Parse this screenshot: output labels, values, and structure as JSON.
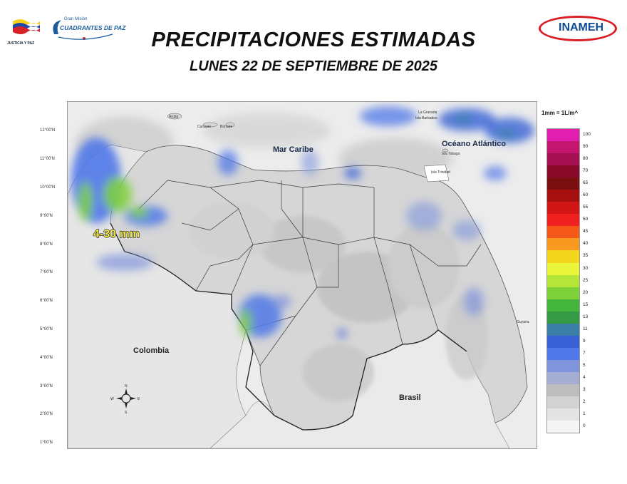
{
  "header": {
    "title": "PRECIPITACIONES ESTIMADAS",
    "subtitle": "LUNES 22 DE SEPTIEMBRE DE 2025",
    "logo_left_caption": "JUSTICIA Y PAZ",
    "mision_small": "Gran Misión",
    "mision_big": "CUADRANTES DE PAZ",
    "logo_right_text": "INAMEH"
  },
  "map": {
    "labels": {
      "mar_caribe": "Mar Caribe",
      "oceano": "Océano Atlántico",
      "colombia": "Colombia",
      "brasil": "Brasil",
      "aruba": "Aruba",
      "curacao": "Curaçao",
      "bonaire": "Bonaire",
      "la_granada": "La Granada",
      "la_barbados": "Isla Barbados",
      "la_tobago": "Isla Tobago",
      "la_trinidad": "Isla Trinidad",
      "guyana": "Guyana",
      "annotation": "4-30 mm"
    },
    "latitudes": [
      "12°00'N",
      "11°00'N",
      "10°00'N",
      "9°00'N",
      "8°00'N",
      "7°00'N",
      "6°00'N",
      "5°00'N",
      "4°00'N",
      "3°00'N",
      "2°00'N",
      "1°00'N"
    ],
    "compass": {
      "n": "N",
      "s": "S",
      "e": "E",
      "w": "W"
    }
  },
  "legend": {
    "title": "1mm = 1L/m^",
    "items": [
      {
        "value": "100",
        "color": "#e31fb0"
      },
      {
        "value": "90",
        "color": "#c4156f"
      },
      {
        "value": "80",
        "color": "#a51052"
      },
      {
        "value": "70",
        "color": "#8a0a2a"
      },
      {
        "value": "65",
        "color": "#7a0f10"
      },
      {
        "value": "60",
        "color": "#a50f0f"
      },
      {
        "value": "55",
        "color": "#d21616"
      },
      {
        "value": "50",
        "color": "#f02020"
      },
      {
        "value": "45",
        "color": "#f5591a"
      },
      {
        "value": "40",
        "color": "#f79a1f"
      },
      {
        "value": "35",
        "color": "#f2d71c"
      },
      {
        "value": "30",
        "color": "#e8f53a"
      },
      {
        "value": "25",
        "color": "#b6e53a"
      },
      {
        "value": "20",
        "color": "#7fd13a"
      },
      {
        "value": "15",
        "color": "#43b53d"
      },
      {
        "value": "13",
        "color": "#349a46"
      },
      {
        "value": "11",
        "color": "#3b7fa7"
      },
      {
        "value": "9",
        "color": "#3861d6"
      },
      {
        "value": "7",
        "color": "#5078e8"
      },
      {
        "value": "5",
        "color": "#7f94dc"
      },
      {
        "value": "4",
        "color": "#a6add2"
      },
      {
        "value": "3",
        "color": "#bdbdbd"
      },
      {
        "value": "2",
        "color": "#d2d2d2"
      },
      {
        "value": "1",
        "color": "#e4e4e4"
      },
      {
        "value": "0",
        "color": "#f5f5f5"
      }
    ]
  }
}
